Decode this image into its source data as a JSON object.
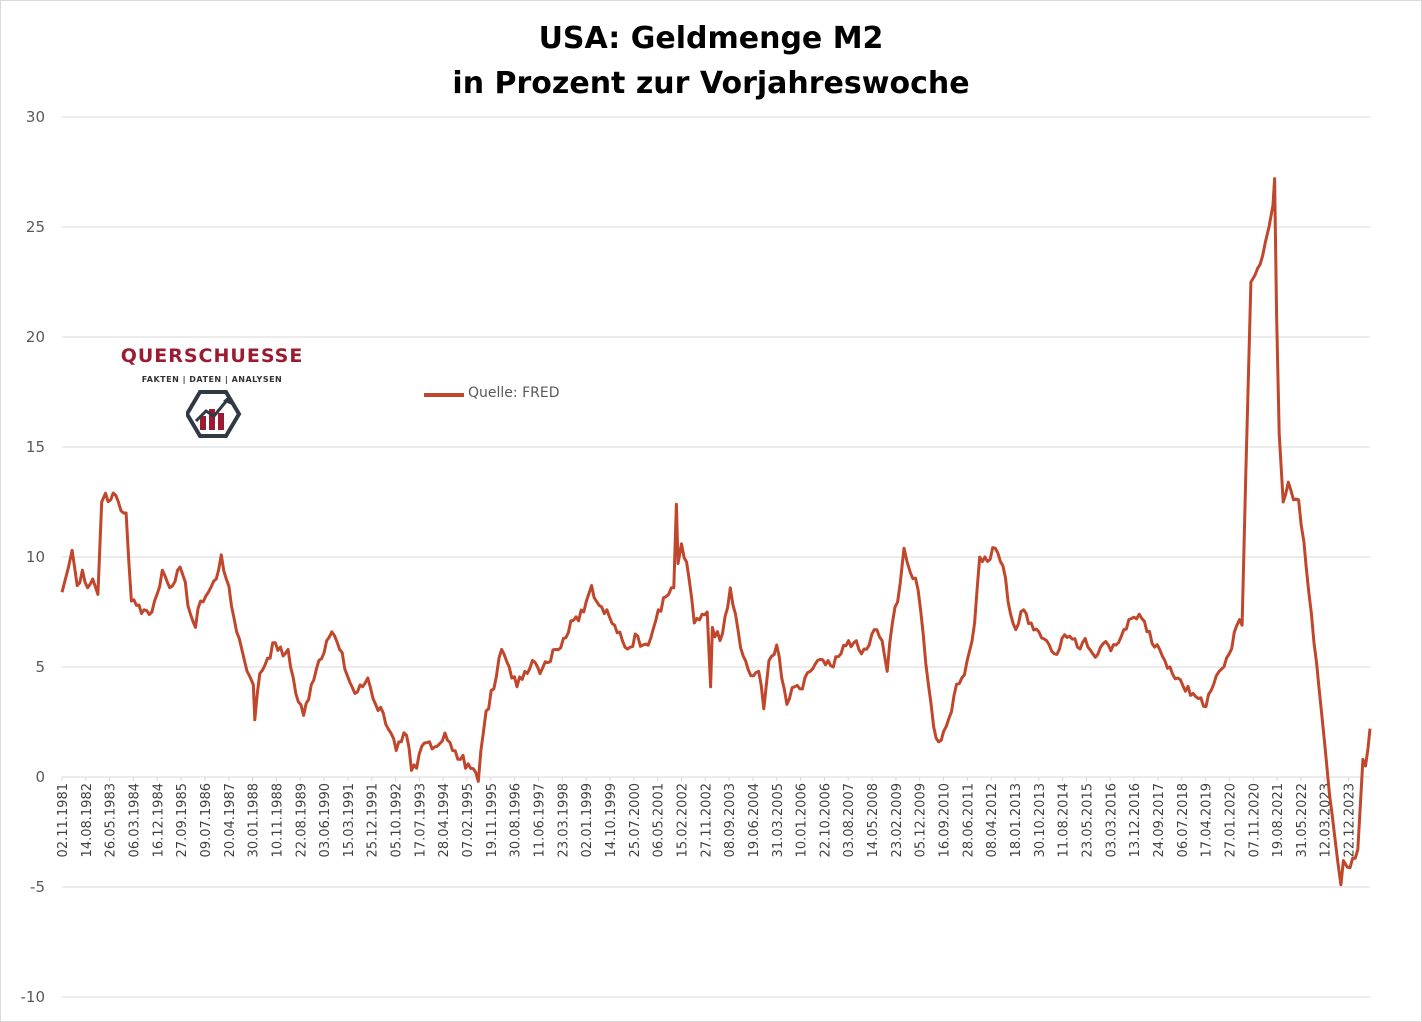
{
  "title_line1": "USA: Geldmenge M2",
  "title_line2": "in Prozent zur Vorjahreswoche",
  "legend": {
    "label": "Quelle: FRED"
  },
  "logo": {
    "name": "QUERSCHUESSE",
    "tagline": "FAKTEN | DATEN | ANALYSEN",
    "icon": "chart-hexagon-icon"
  },
  "colors": {
    "series": "#c0472b",
    "grid": "#d9d9d9",
    "axis_text": "#595959",
    "logo_red": "#9b1b30"
  },
  "chart_data": {
    "type": "line",
    "title": "USA: Geldmenge M2 in Prozent zur Vorjahreswoche",
    "xlabel": "",
    "ylabel": "",
    "ylim": [
      -10,
      30
    ],
    "yticks": [
      -10,
      -5,
      0,
      5,
      10,
      15,
      20,
      25,
      30
    ],
    "grid": "horizontal",
    "legend_position": "top-left",
    "x_range": [
      "1981-11-02",
      "2024-03-25"
    ],
    "x_tick_labels": [
      "02.11.1981",
      "14.08.1982",
      "26.05.1983",
      "06.03.1984",
      "16.12.1984",
      "27.09.1985",
      "09.07.1986",
      "20.04.1987",
      "30.01.1988",
      "10.11.1988",
      "22.08.1989",
      "03.06.1990",
      "15.03.1991",
      "25.12.1991",
      "05.10.1992",
      "17.07.1993",
      "28.04.1994",
      "07.02.1995",
      "19.11.1995",
      "30.08.1996",
      "11.06.1997",
      "23.03.1998",
      "02.01.1999",
      "14.10.1999",
      "25.07.2000",
      "06.05.2001",
      "15.02.2002",
      "27.11.2002",
      "08.09.2003",
      "19.06.2004",
      "31.03.2005",
      "10.01.2006",
      "22.10.2006",
      "03.08.2007",
      "14.05.2008",
      "23.02.2009",
      "05.12.2009",
      "16.09.2010",
      "28.06.2011",
      "08.04.2012",
      "18.01.2013",
      "30.10.2013",
      "11.08.2014",
      "23.05.2015",
      "03.03.2016",
      "13.12.2016",
      "24.09.2017",
      "06.07.2018",
      "17.04.2019",
      "27.01.2020",
      "07.11.2020",
      "19.08.2021",
      "31.05.2022",
      "12.03.2023",
      "22.12.2023"
    ],
    "series": [
      {
        "name": "Quelle: FRED",
        "points": [
          [
            "1981-11-02",
            8.4
          ],
          [
            "1982-01-15",
            9.5
          ],
          [
            "1982-03-01",
            10.3
          ],
          [
            "1982-05-01",
            8.7
          ],
          [
            "1982-07-01",
            9.4
          ],
          [
            "1982-09-01",
            8.6
          ],
          [
            "1982-11-01",
            9.0
          ],
          [
            "1983-01-01",
            8.3
          ],
          [
            "1983-02-15",
            12.5
          ],
          [
            "1983-04-01",
            12.9
          ],
          [
            "1983-06-01",
            12.6
          ],
          [
            "1983-08-01",
            12.8
          ],
          [
            "1983-10-01",
            12.1
          ],
          [
            "1983-12-01",
            12.0
          ],
          [
            "1984-02-01",
            8.0
          ],
          [
            "1984-04-01",
            7.8
          ],
          [
            "1984-07-01",
            7.6
          ],
          [
            "1984-10-01",
            7.5
          ],
          [
            "1984-12-01",
            8.3
          ],
          [
            "1985-02-01",
            9.4
          ],
          [
            "1985-05-01",
            8.6
          ],
          [
            "1985-08-01",
            9.4
          ],
          [
            "1985-10-01",
            9.2
          ],
          [
            "1986-01-01",
            7.4
          ],
          [
            "1986-03-01",
            6.8
          ],
          [
            "1986-05-01",
            8.0
          ],
          [
            "1986-08-01",
            8.4
          ],
          [
            "1986-11-01",
            9.0
          ],
          [
            "1987-01-01",
            10.1
          ],
          [
            "1987-03-01",
            9.0
          ],
          [
            "1987-06-01",
            7.2
          ],
          [
            "1987-09-01",
            5.8
          ],
          [
            "1987-12-01",
            4.6
          ],
          [
            "1988-01-15",
            4.2
          ],
          [
            "1988-02-01",
            2.6
          ],
          [
            "1988-04-01",
            4.7
          ],
          [
            "1988-07-01",
            5.4
          ],
          [
            "1988-10-01",
            6.1
          ],
          [
            "1989-01-01",
            5.5
          ],
          [
            "1989-03-01",
            5.8
          ],
          [
            "1989-06-01",
            3.8
          ],
          [
            "1989-09-01",
            2.8
          ],
          [
            "1989-12-01",
            4.2
          ],
          [
            "1990-03-01",
            5.3
          ],
          [
            "1990-06-01",
            6.2
          ],
          [
            "1990-08-01",
            6.6
          ],
          [
            "1990-11-01",
            5.8
          ],
          [
            "1991-02-01",
            4.6
          ],
          [
            "1991-05-01",
            3.8
          ],
          [
            "1991-08-01",
            4.1
          ],
          [
            "1991-10-01",
            4.5
          ],
          [
            "1992-01-01",
            3.3
          ],
          [
            "1992-04-01",
            2.9
          ],
          [
            "1992-07-01",
            2.0
          ],
          [
            "1992-09-01",
            1.2
          ],
          [
            "1992-11-01",
            1.6
          ],
          [
            "1993-01-01",
            1.9
          ],
          [
            "1993-03-01",
            0.3
          ],
          [
            "1993-05-01",
            0.4
          ],
          [
            "1993-07-01",
            1.4
          ],
          [
            "1993-10-01",
            1.6
          ],
          [
            "1994-01-01",
            1.4
          ],
          [
            "1994-04-01",
            2.0
          ],
          [
            "1994-07-01",
            1.2
          ],
          [
            "1994-10-01",
            0.8
          ],
          [
            "1995-01-01",
            0.6
          ],
          [
            "1995-04-01",
            0.2
          ],
          [
            "1995-05-01",
            -0.2
          ],
          [
            "1995-06-01",
            1.2
          ],
          [
            "1995-08-01",
            3.0
          ],
          [
            "1995-11-01",
            4.0
          ],
          [
            "1996-02-01",
            5.8
          ],
          [
            "1996-05-01",
            5.0
          ],
          [
            "1996-08-01",
            4.1
          ],
          [
            "1996-11-01",
            4.8
          ],
          [
            "1997-02-01",
            5.3
          ],
          [
            "1997-05-01",
            4.7
          ],
          [
            "1997-08-01",
            5.2
          ],
          [
            "1997-11-01",
            5.8
          ],
          [
            "1998-02-01",
            6.3
          ],
          [
            "1998-05-01",
            7.1
          ],
          [
            "1998-08-01",
            7.1
          ],
          [
            "1998-11-01",
            8.0
          ],
          [
            "1999-01-01",
            8.7
          ],
          [
            "1999-04-01",
            7.8
          ],
          [
            "1999-07-01",
            7.6
          ],
          [
            "1999-10-01",
            6.9
          ],
          [
            "2000-01-01",
            6.2
          ],
          [
            "2000-04-01",
            5.9
          ],
          [
            "2000-06-01",
            6.5
          ],
          [
            "2000-09-01",
            6.0
          ],
          [
            "2000-12-01",
            6.3
          ],
          [
            "2001-03-01",
            7.6
          ],
          [
            "2001-06-01",
            8.2
          ],
          [
            "2001-09-01",
            8.6
          ],
          [
            "2001-10-01",
            12.4
          ],
          [
            "2001-10-20",
            9.7
          ],
          [
            "2001-12-01",
            10.6
          ],
          [
            "2002-03-01",
            9.0
          ],
          [
            "2002-05-01",
            7.0
          ],
          [
            "2002-08-01",
            7.4
          ],
          [
            "2002-10-01",
            7.5
          ],
          [
            "2002-11-10",
            4.1
          ],
          [
            "2002-12-01",
            6.8
          ],
          [
            "2003-03-01",
            6.2
          ],
          [
            "2003-05-01",
            7.3
          ],
          [
            "2003-07-01",
            8.6
          ],
          [
            "2003-09-01",
            7.4
          ],
          [
            "2003-12-01",
            5.5
          ],
          [
            "2004-03-01",
            4.6
          ],
          [
            "2004-06-01",
            4.8
          ],
          [
            "2004-08-01",
            3.1
          ],
          [
            "2004-10-01",
            5.3
          ],
          [
            "2005-01-01",
            6.0
          ],
          [
            "2005-03-01",
            4.5
          ],
          [
            "2005-05-01",
            3.3
          ],
          [
            "2005-08-01",
            4.1
          ],
          [
            "2005-11-01",
            4.0
          ],
          [
            "2006-02-01",
            4.8
          ],
          [
            "2006-05-01",
            5.3
          ],
          [
            "2006-08-01",
            5.1
          ],
          [
            "2006-11-01",
            5.0
          ],
          [
            "2007-02-01",
            5.6
          ],
          [
            "2007-05-01",
            6.2
          ],
          [
            "2007-07-01",
            6.1
          ],
          [
            "2007-10-01",
            5.6
          ],
          [
            "2008-01-01",
            6.0
          ],
          [
            "2008-03-01",
            6.7
          ],
          [
            "2008-06-01",
            6.2
          ],
          [
            "2008-08-01",
            4.8
          ],
          [
            "2008-10-01",
            7.0
          ],
          [
            "2009-01-01",
            8.8
          ],
          [
            "2009-02-15",
            10.4
          ],
          [
            "2009-05-01",
            9.3
          ],
          [
            "2009-08-01",
            8.5
          ],
          [
            "2009-10-01",
            6.5
          ],
          [
            "2009-12-01",
            4.2
          ],
          [
            "2010-02-01",
            2.3
          ],
          [
            "2010-04-01",
            1.6
          ],
          [
            "2010-07-01",
            2.3
          ],
          [
            "2010-10-01",
            3.7
          ],
          [
            "2011-01-01",
            4.5
          ],
          [
            "2011-04-01",
            5.7
          ],
          [
            "2011-06-01",
            7.0
          ],
          [
            "2011-08-01",
            10.0
          ],
          [
            "2011-11-01",
            9.8
          ],
          [
            "2012-02-01",
            10.4
          ],
          [
            "2012-05-01",
            9.6
          ],
          [
            "2012-08-01",
            7.4
          ],
          [
            "2012-10-01",
            6.7
          ],
          [
            "2013-01-01",
            7.6
          ],
          [
            "2013-04-01",
            7.0
          ],
          [
            "2013-07-01",
            6.6
          ],
          [
            "2013-10-01",
            6.2
          ],
          [
            "2014-01-01",
            5.6
          ],
          [
            "2014-04-01",
            6.3
          ],
          [
            "2014-07-01",
            6.4
          ],
          [
            "2014-10-01",
            5.9
          ],
          [
            "2015-01-01",
            6.3
          ],
          [
            "2015-04-01",
            5.6
          ],
          [
            "2015-07-01",
            5.9
          ],
          [
            "2015-10-01",
            6.0
          ],
          [
            "2016-01-01",
            6.0
          ],
          [
            "2016-04-01",
            6.7
          ],
          [
            "2016-07-01",
            7.2
          ],
          [
            "2016-10-01",
            7.4
          ],
          [
            "2017-01-01",
            6.6
          ],
          [
            "2017-04-01",
            5.9
          ],
          [
            "2017-07-01",
            5.5
          ],
          [
            "2017-10-01",
            5.0
          ],
          [
            "2018-01-01",
            4.5
          ],
          [
            "2018-04-01",
            3.9
          ],
          [
            "2018-07-01",
            3.8
          ],
          [
            "2018-10-01",
            3.6
          ],
          [
            "2018-12-01",
            3.2
          ],
          [
            "2019-03-01",
            4.2
          ],
          [
            "2019-06-01",
            4.9
          ],
          [
            "2019-09-01",
            5.6
          ],
          [
            "2019-12-01",
            6.9
          ],
          [
            "2020-02-01",
            6.9
          ],
          [
            "2020-03-15",
            13.6
          ],
          [
            "2020-04-15",
            18.2
          ],
          [
            "2020-05-15",
            22.5
          ],
          [
            "2020-07-01",
            22.8
          ],
          [
            "2020-09-01",
            23.3
          ],
          [
            "2020-11-01",
            24.3
          ],
          [
            "2020-12-15",
            25.0
          ],
          [
            "2021-02-01",
            26.0
          ],
          [
            "2021-02-20",
            27.2
          ],
          [
            "2021-03-15",
            21.0
          ],
          [
            "2021-04-15",
            15.6
          ],
          [
            "2021-06-01",
            12.5
          ],
          [
            "2021-08-01",
            13.4
          ],
          [
            "2021-10-01",
            12.6
          ],
          [
            "2021-12-01",
            12.6
          ],
          [
            "2022-02-01",
            10.7
          ],
          [
            "2022-04-01",
            8.4
          ],
          [
            "2022-06-01",
            6.1
          ],
          [
            "2022-08-01",
            4.0
          ],
          [
            "2022-10-01",
            1.7
          ],
          [
            "2022-12-01",
            -0.8
          ],
          [
            "2023-02-01",
            -2.7
          ],
          [
            "2023-04-15",
            -4.9
          ],
          [
            "2023-05-15",
            -3.8
          ],
          [
            "2023-07-01",
            -4.1
          ],
          [
            "2023-09-01",
            -3.7
          ],
          [
            "2023-11-01",
            -3.3
          ],
          [
            "2024-01-01",
            0.8
          ],
          [
            "2024-02-01",
            0.5
          ],
          [
            "2024-03-01",
            1.3
          ],
          [
            "2024-03-25",
            2.2
          ]
        ]
      }
    ]
  }
}
